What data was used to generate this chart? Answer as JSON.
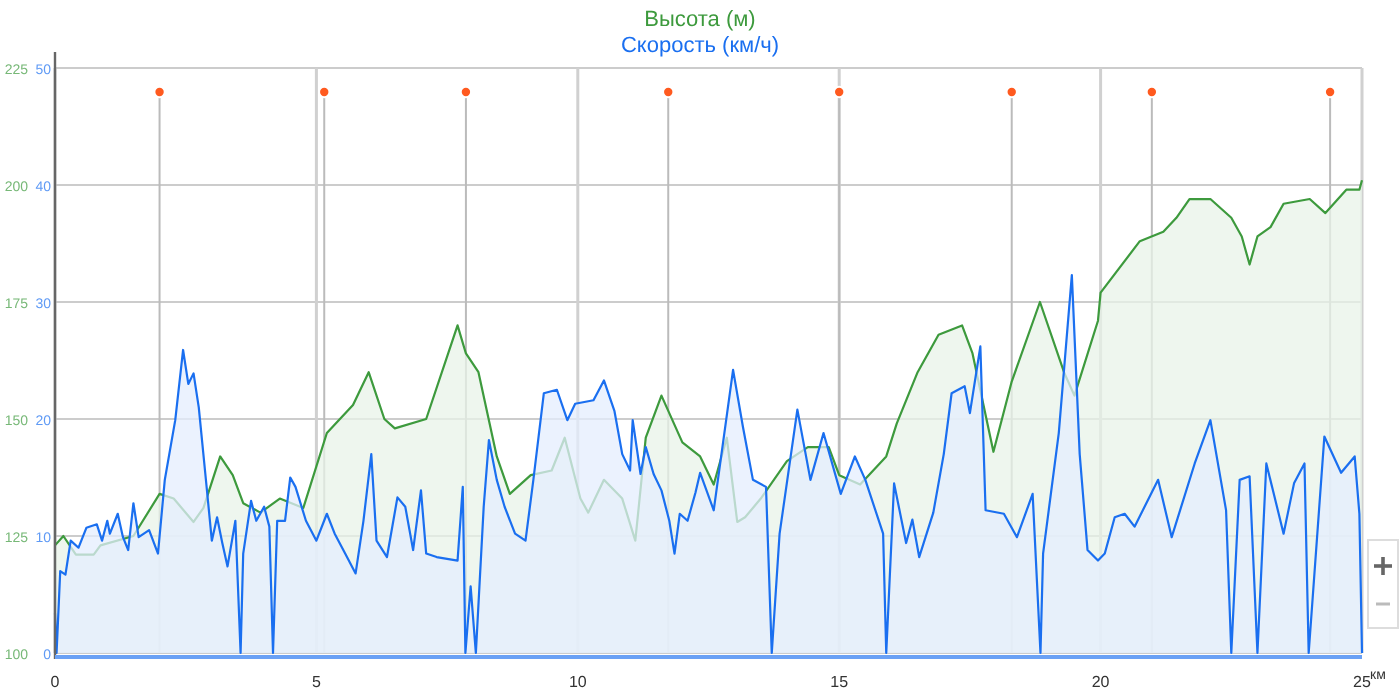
{
  "chart_data": {
    "type": "area",
    "xlabel": "км",
    "xlim": [
      0,
      25
    ],
    "xticks": [
      0,
      5,
      10,
      15,
      20,
      25
    ],
    "ylim": [
      100,
      225
    ],
    "yticks": [
      100,
      125,
      150,
      175,
      200,
      225
    ],
    "y2lim": [
      0,
      50
    ],
    "y2ticks": [
      0,
      10,
      20,
      30,
      40,
      50
    ],
    "grid": true,
    "legend": "top",
    "marker": "none",
    "line_style": "solid",
    "series": [
      {
        "name": "Высота (м)",
        "color": "#3d9a3d",
        "x": [
          0,
          0.16,
          0.4,
          0.74,
          0.87,
          1.5,
          2.0,
          2.27,
          2.65,
          2.84,
          3.16,
          3.4,
          3.6,
          3.93,
          4.3,
          4.75,
          5.2,
          5.7,
          6.0,
          6.3,
          6.5,
          7.1,
          7.7,
          7.86,
          8.1,
          8.45,
          8.7,
          9.1,
          9.5,
          9.75,
          10.05,
          10.2,
          10.5,
          10.85,
          11.1,
          11.3,
          11.6,
          12.0,
          12.34,
          12.6,
          12.85,
          13.05,
          13.2,
          13.5,
          14.0,
          14.4,
          14.8,
          15.0,
          15.4,
          15.9,
          16.1,
          16.5,
          16.9,
          17.35,
          17.55,
          17.95,
          18.3,
          18.84,
          19.3,
          19.5,
          19.95,
          20.0,
          20.75,
          21.2,
          21.45,
          21.7,
          22.1,
          22.5,
          22.7,
          22.85,
          23.0,
          23.25,
          23.5,
          24.0,
          24.3,
          24.7,
          24.95,
          25
        ],
        "values": [
          123,
          125,
          121,
          121,
          123,
          125,
          134,
          133,
          128,
          131,
          142,
          138,
          132,
          130,
          133,
          131,
          147,
          153,
          160,
          150,
          148,
          150,
          170,
          164,
          160,
          142,
          134,
          138,
          139,
          146,
          133,
          130,
          137,
          133,
          124,
          146,
          155,
          145,
          142,
          136,
          146,
          128,
          129,
          133,
          141,
          144,
          144,
          138,
          136,
          142,
          149,
          160,
          168,
          170,
          164,
          143,
          158,
          175,
          160,
          155,
          171,
          177,
          188,
          190,
          193,
          197,
          197,
          193,
          189,
          183,
          189,
          191,
          196,
          197,
          194,
          199,
          199,
          201
        ]
      },
      {
        "name": "Скорость (км/ч)",
        "color": "#1a6ff0",
        "axis": "y2",
        "x": [
          0,
          0.03,
          0.1,
          0.2,
          0.3,
          0.45,
          0.6,
          0.8,
          0.9,
          1.0,
          1.05,
          1.2,
          1.3,
          1.4,
          1.5,
          1.6,
          1.8,
          1.97,
          2.1,
          2.3,
          2.45,
          2.55,
          2.65,
          2.75,
          2.9,
          3.0,
          3.1,
          3.2,
          3.3,
          3.45,
          3.55,
          3.6,
          3.75,
          3.85,
          4.0,
          4.1,
          4.17,
          4.25,
          4.4,
          4.5,
          4.6,
          4.8,
          5.0,
          5.2,
          5.35,
          5.55,
          5.75,
          5.9,
          6.05,
          6.15,
          6.35,
          6.55,
          6.7,
          6.85,
          7.0,
          7.1,
          7.3,
          7.7,
          7.8,
          7.85,
          7.95,
          8.05,
          8.2,
          8.3,
          8.45,
          8.6,
          8.8,
          9.0,
          9.15,
          9.35,
          9.6,
          9.8,
          9.95,
          10.3,
          10.5,
          10.7,
          10.85,
          11.0,
          11.05,
          11.2,
          11.3,
          11.45,
          11.6,
          11.75,
          11.85,
          11.95,
          12.1,
          12.25,
          12.34,
          12.6,
          12.97,
          13.16,
          13.35,
          13.6,
          13.71,
          13.86,
          14.2,
          14.45,
          14.7,
          15.03,
          15.3,
          15.5,
          15.84,
          15.9,
          16.05,
          16.28,
          16.4,
          16.53,
          16.8,
          17.0,
          17.15,
          17.4,
          17.5,
          17.7,
          17.8,
          18.15,
          18.4,
          18.7,
          18.85,
          18.9,
          19.2,
          19.45,
          19.6,
          19.75,
          19.95,
          20.08,
          20.27,
          20.46,
          20.65,
          21.1,
          21.36,
          21.8,
          22.1,
          22.4,
          22.5,
          22.66,
          22.85,
          23.0,
          23.17,
          23.5,
          23.7,
          23.9,
          23.98,
          24.28,
          24.6,
          24.86,
          24.95,
          25
        ],
        "values": [
          3.4,
          0,
          7,
          6.7,
          9.6,
          9,
          10.7,
          11,
          9.6,
          11.3,
          10.2,
          11.9,
          9.9,
          8.8,
          12.8,
          9.9,
          10.5,
          8.5,
          14.8,
          19.9,
          25.9,
          23,
          23.9,
          21,
          14.2,
          9.6,
          11.6,
          9.4,
          7.4,
          11.3,
          0,
          8.5,
          13,
          11.3,
          12.5,
          10.8,
          0,
          11.3,
          11.3,
          15,
          14.2,
          11.3,
          9.6,
          11.9,
          10.2,
          8.5,
          6.8,
          11.3,
          17,
          9.6,
          8.2,
          13.3,
          12.5,
          8.8,
          13.9,
          8.5,
          8.2,
          7.9,
          14.2,
          0,
          5.7,
          0,
          12.5,
          18.2,
          14.8,
          12.5,
          10.2,
          9.6,
          14.8,
          22.2,
          22.5,
          19.9,
          21.3,
          21.6,
          23.3,
          20.7,
          17,
          15.6,
          19.9,
          15.3,
          17.6,
          15.3,
          13.9,
          11.3,
          8.5,
          11.9,
          11.3,
          13.7,
          15.4,
          12.2,
          24.2,
          19.3,
          14.8,
          14.2,
          0,
          10.2,
          20.8,
          14.8,
          18.8,
          13.6,
          16.8,
          14.8,
          10.2,
          0,
          14.5,
          9.4,
          11.4,
          8.2,
          12,
          17,
          22.2,
          22.8,
          20.5,
          26.2,
          12.2,
          11.9,
          9.9,
          13.6,
          0,
          8.5,
          18.8,
          32.3,
          17,
          8.8,
          7.9,
          8.5,
          11.6,
          11.9,
          10.8,
          14.8,
          9.9,
          16.2,
          19.9,
          12.2,
          0,
          14.8,
          15.1,
          0,
          16.2,
          10.2,
          14.5,
          16.2,
          0,
          18.5,
          15.4,
          16.8,
          11.9,
          0
        ]
      }
    ],
    "ref_lines": [
      {
        "axis": "x",
        "value": 2.0,
        "color": "#bbbbbb"
      },
      {
        "axis": "x",
        "value": 5.15,
        "color": "#bbbbbb"
      },
      {
        "axis": "x",
        "value": 7.86,
        "color": "#bbbbbb"
      },
      {
        "axis": "x",
        "value": 11.73,
        "color": "#bbbbbb"
      },
      {
        "axis": "x",
        "value": 15.0,
        "color": "#bbbbbb"
      },
      {
        "axis": "x",
        "value": 18.3,
        "color": "#bbbbbb"
      },
      {
        "axis": "x",
        "value": 20.98,
        "color": "#bbbbbb"
      },
      {
        "axis": "x",
        "value": 24.39,
        "color": "#bbbbbb"
      }
    ]
  }
}
